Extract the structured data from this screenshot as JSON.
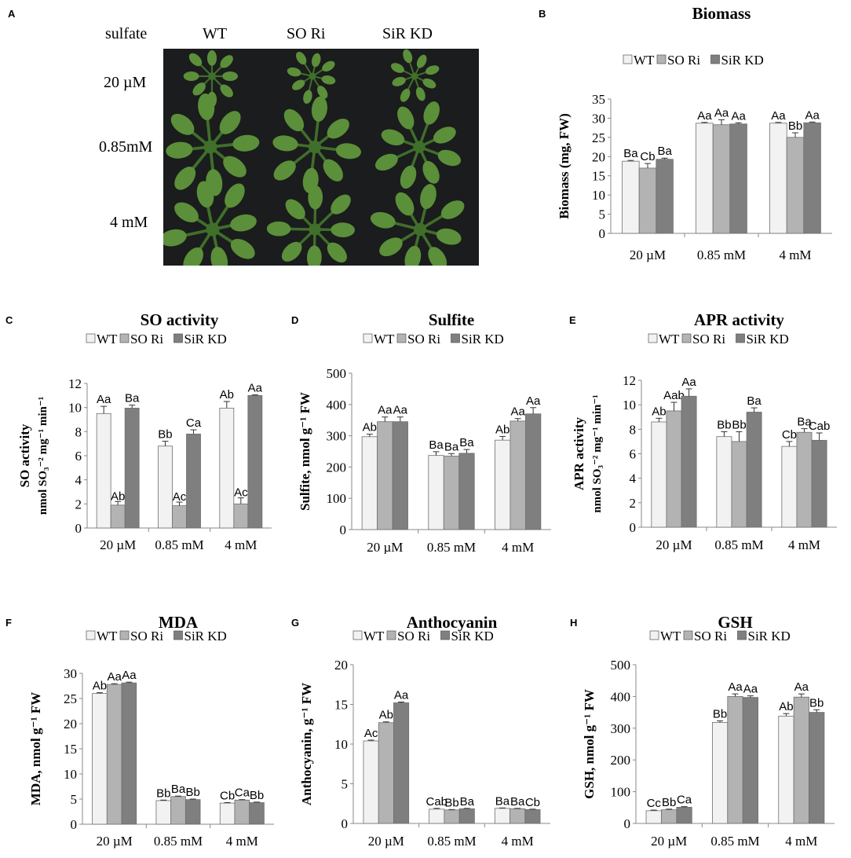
{
  "panel_a": {
    "letter": "A",
    "row_header": "sulfate",
    "genotypes": [
      "WT",
      "SO Ri",
      "SiR KD"
    ],
    "concentrations": [
      "20 µM",
      "0.85mM",
      "4 mM"
    ]
  },
  "colors": {
    "WT": "#f2f2f2",
    "SO Ri": "#b3b3b3",
    "SiR KD": "#7f7f7f",
    "photo_bg": "#1b1c1d",
    "leaf": "#5b8f3a",
    "leaf_dark": "#3f6f2a"
  },
  "legend_labels": [
    "WT",
    "SO Ri",
    "SiR KD"
  ],
  "chart_data": [
    {
      "panel": "B",
      "type": "bar",
      "title": "Biomass",
      "ylabel": "Biomass (mg, FW)",
      "categories": [
        "20 µM",
        "0.85 mM",
        "4 mM"
      ],
      "ylim": [
        0,
        35
      ],
      "ticks": [
        0,
        5,
        10,
        15,
        20,
        25,
        30,
        35
      ],
      "series": [
        {
          "name": "WT",
          "values": [
            18.8,
            28.7,
            28.7
          ],
          "errors": [
            0.2,
            0.2,
            0.2
          ]
        },
        {
          "name": "SO Ri",
          "values": [
            17.0,
            28.3,
            25.0
          ],
          "errors": [
            1.2,
            1.3,
            1.2
          ]
        },
        {
          "name": "SiR KD",
          "values": [
            19.3,
            28.5,
            28.8
          ],
          "errors": [
            0.3,
            0.3,
            0.2
          ]
        }
      ],
      "labels": [
        [
          "Ba",
          "Cb",
          "Ba"
        ],
        [
          "Aa",
          "Aa",
          "Aa"
        ],
        [
          "Aa",
          "Bb",
          "Aa"
        ]
      ]
    },
    {
      "panel": "C",
      "type": "bar",
      "title": "SO activity",
      "ylabel": "SO activity",
      "ylabel2": "nmol SO₃⁻² mg⁻¹ min⁻¹",
      "categories": [
        "20 µM",
        "0.85 mM",
        "4 mM"
      ],
      "ylim": [
        0,
        12
      ],
      "ticks": [
        0,
        2,
        4,
        6,
        8,
        10,
        12
      ],
      "series": [
        {
          "name": "WT",
          "values": [
            9.5,
            6.8,
            9.95
          ],
          "errors": [
            0.6,
            0.4,
            0.55
          ]
        },
        {
          "name": "SO Ri",
          "values": [
            1.9,
            1.85,
            2.0
          ],
          "errors": [
            0.3,
            0.3,
            0.5
          ]
        },
        {
          "name": "SiR KD",
          "values": [
            9.95,
            7.8,
            11.0
          ],
          "errors": [
            0.25,
            0.35,
            0.05
          ]
        }
      ],
      "labels": [
        [
          "Aa",
          "Ab",
          "Ba"
        ],
        [
          "Bb",
          "Ac",
          "Ca"
        ],
        [
          "Ab",
          "Ac",
          "Aa"
        ]
      ],
      "label_inside_series": 1
    },
    {
      "panel": "D",
      "type": "bar",
      "title": "Sulfite",
      "ylabel": "Sulfite, nmol g⁻¹ FW",
      "categories": [
        "20 µM",
        "0.85 mM",
        "4 mM"
      ],
      "ylim": [
        0,
        500
      ],
      "ticks": [
        0,
        100,
        200,
        300,
        400,
        500
      ],
      "series": [
        {
          "name": "WT",
          "values": [
            297,
            237,
            286
          ],
          "errors": [
            8,
            12,
            12
          ]
        },
        {
          "name": "SO Ri",
          "values": [
            345,
            235,
            347
          ],
          "errors": [
            15,
            8,
            8
          ]
        },
        {
          "name": "SiR KD",
          "values": [
            345,
            244,
            370
          ],
          "errors": [
            15,
            12,
            20
          ]
        }
      ],
      "labels": [
        [
          "Ab",
          "Aa",
          "Aa"
        ],
        [
          "Ba",
          "Ba",
          "Ba"
        ],
        [
          "Ab",
          "Aa",
          "Aa"
        ]
      ]
    },
    {
      "panel": "E",
      "type": "bar",
      "title": "APR activity",
      "ylabel": "APR activity",
      "ylabel2": "nmol SO₃⁻² mg⁻¹ min⁻¹",
      "categories": [
        "20 µM",
        "0.85 mM",
        "4 mM"
      ],
      "ylim": [
        0,
        12
      ],
      "ticks": [
        0,
        2,
        4,
        6,
        8,
        10,
        12
      ],
      "series": [
        {
          "name": "WT",
          "values": [
            8.6,
            7.4,
            6.6
          ],
          "errors": [
            0.3,
            0.4,
            0.4
          ]
        },
        {
          "name": "SO Ri",
          "values": [
            9.5,
            7.0,
            7.75
          ],
          "errors": [
            0.7,
            0.8,
            0.3
          ]
        },
        {
          "name": "SiR KD",
          "values": [
            10.7,
            9.4,
            7.1
          ],
          "errors": [
            0.6,
            0.35,
            0.6
          ]
        }
      ],
      "labels": [
        [
          "Ab",
          "Aab",
          "Aa"
        ],
        [
          "Bb",
          "Bb",
          "Ba"
        ],
        [
          "Cb",
          "Ba",
          "Cab"
        ]
      ]
    },
    {
      "panel": "F",
      "type": "bar",
      "title": "MDA",
      "ylabel": "MDA, nmol g⁻¹ FW",
      "categories": [
        "20 µM",
        "0.85 mM",
        "4 mM"
      ],
      "ylim": [
        0,
        30
      ],
      "ticks": [
        0,
        5,
        10,
        15,
        20,
        25,
        30
      ],
      "series": [
        {
          "name": "WT",
          "values": [
            26.0,
            4.7,
            4.2
          ],
          "errors": [
            0.15,
            0.1,
            0.1
          ]
        },
        {
          "name": "SO Ri",
          "values": [
            27.8,
            5.5,
            4.8
          ],
          "errors": [
            0.15,
            0.1,
            0.1
          ]
        },
        {
          "name": "SiR KD",
          "values": [
            28.1,
            4.9,
            4.3
          ],
          "errors": [
            0.15,
            0.1,
            0.1
          ]
        }
      ],
      "labels": [
        [
          "Ab",
          "Aa",
          "Aa"
        ],
        [
          "Bb",
          "Ba",
          "Bb"
        ],
        [
          "Cb",
          "Ca",
          "Bb"
        ]
      ]
    },
    {
      "panel": "G",
      "type": "bar",
      "title": "Anthocyanin",
      "ylabel": "Anthocyanin, g⁻¹ FW",
      "categories": [
        "20 µM",
        "0.85 mM",
        "4 mM"
      ],
      "ylim": [
        0,
        20
      ],
      "ticks": [
        0,
        5,
        10,
        15,
        20
      ],
      "series": [
        {
          "name": "WT",
          "values": [
            10.4,
            1.8,
            1.9
          ],
          "errors": [
            0.1,
            0.1,
            0.05
          ]
        },
        {
          "name": "SO Ri",
          "values": [
            12.7,
            1.7,
            1.85
          ],
          "errors": [
            0.1,
            0.05,
            0.05
          ]
        },
        {
          "name": "SiR KD",
          "values": [
            15.2,
            1.85,
            1.75
          ],
          "errors": [
            0.1,
            0.05,
            0.05
          ]
        }
      ],
      "labels": [
        [
          "Ac",
          "Ab",
          "Aa"
        ],
        [
          "Cab",
          "Bb",
          "Ba"
        ],
        [
          "Ba",
          "Ba",
          "Cb"
        ]
      ]
    },
    {
      "panel": "H",
      "type": "bar",
      "title": "GSH",
      "ylabel": "GSH, nmol g⁻¹ FW",
      "categories": [
        "20 µM",
        "0.85 mM",
        "4 mM"
      ],
      "ylim": [
        0,
        500
      ],
      "ticks": [
        0,
        100,
        200,
        300,
        400,
        500
      ],
      "series": [
        {
          "name": "WT",
          "values": [
            40,
            318,
            338
          ],
          "errors": [
            2,
            5,
            8
          ]
        },
        {
          "name": "SO Ri",
          "values": [
            43,
            400,
            398
          ],
          "errors": [
            2,
            8,
            10
          ]
        },
        {
          "name": "SiR KD",
          "values": [
            51,
            397,
            350
          ],
          "errors": [
            2,
            5,
            8
          ]
        }
      ],
      "labels": [
        [
          "Cc",
          "Bb",
          "Ca"
        ],
        [
          "Bb",
          "Aa",
          "Aa"
        ],
        [
          "Ab",
          "Aa",
          "Bb"
        ]
      ]
    }
  ]
}
